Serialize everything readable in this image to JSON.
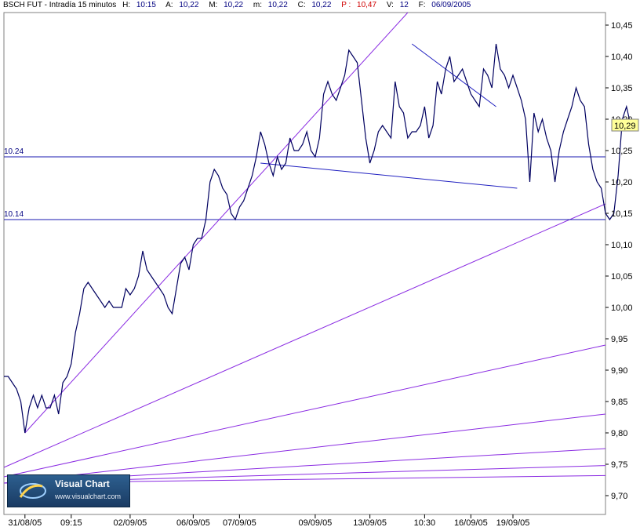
{
  "header": {
    "symbol": "BSCH FUT - Intradía 15 minutos",
    "h_label": "H:",
    "h_value": "10:15",
    "a_label": "A:",
    "a_value": "10,22",
    "m_label": "M:",
    "m_value": "10,22",
    "mm_label": "m:",
    "mm_value": "10,22",
    "c_label": "C:",
    "c_value": "10,22",
    "p_label": "P :",
    "p_value": "10,47",
    "v_label": "V:",
    "v_value": "12",
    "f_label": "F:",
    "f_value": "06/09/2005"
  },
  "logo": {
    "title": "Visual Chart",
    "url": "www.visualchart.com",
    "icon": "visual-chart-logo-icon"
  },
  "current_price_label": "10,29",
  "colors": {
    "price": "#000060",
    "horizontal": "#1a1ab0",
    "fan": "#8a2be2",
    "trend": "#2020c0",
    "label_bg": "#ffff99"
  },
  "chart_data": {
    "type": "line",
    "title": "BSCH FUT - Intradía 15 minutos",
    "xlabel": "",
    "ylabel": "",
    "ylim": [
      9.67,
      10.47
    ],
    "y_ticks": [
      "10,45",
      "10,40",
      "10,35",
      "10,30",
      "10,25",
      "10,20",
      "10,15",
      "10,10",
      "10,05",
      "10,00",
      "9,95",
      "9,90",
      "9,85",
      "9,80",
      "9,75",
      "9,70"
    ],
    "y_tick_values": [
      10.45,
      10.4,
      10.35,
      10.3,
      10.25,
      10.2,
      10.15,
      10.1,
      10.05,
      10.0,
      9.95,
      9.9,
      9.85,
      9.8,
      9.75,
      9.7
    ],
    "x_ticks": [
      "31/08/05",
      "09:15",
      "02/09/05",
      "06/09/05",
      "07/09/05",
      "09/09/05",
      "13/09/05",
      "10:30",
      "16/09/05",
      "19/09/05"
    ],
    "x_tick_index": [
      5,
      16,
      30,
      45,
      56,
      74,
      87,
      100,
      111,
      121
    ],
    "n_bars": 144,
    "x_range": [
      0,
      143
    ],
    "series": [
      {
        "values": [
          9.89,
          9.89,
          9.88,
          9.87,
          9.85,
          9.8,
          9.84,
          9.86,
          9.84,
          9.86,
          9.84,
          9.84,
          9.86,
          9.83,
          9.88,
          9.89,
          9.91,
          9.96,
          9.99,
          10.03,
          10.04,
          10.03,
          10.02,
          10.01,
          10.0,
          10.01,
          10.0,
          10.0,
          10.0,
          10.03,
          10.02,
          10.03,
          10.05,
          10.09,
          10.06,
          10.05,
          10.04,
          10.03,
          10.02,
          10.0,
          9.99,
          10.03,
          10.07,
          10.08,
          10.06,
          10.1,
          10.11,
          10.11,
          10.14,
          10.2,
          10.22,
          10.21,
          10.19,
          10.18,
          10.15,
          10.14,
          10.16,
          10.17,
          10.19,
          10.21,
          10.24,
          10.28,
          10.26,
          10.23,
          10.21,
          10.24,
          10.22,
          10.23,
          10.27,
          10.25,
          10.25,
          10.26,
          10.28,
          10.25,
          10.24,
          10.27,
          10.34,
          10.36,
          10.34,
          10.33,
          10.35,
          10.37,
          10.41,
          10.4,
          10.39,
          10.33,
          10.27,
          10.23,
          10.25,
          10.28,
          10.29,
          10.28,
          10.27,
          10.36,
          10.32,
          10.31,
          10.27,
          10.28,
          10.28,
          10.29,
          10.32,
          10.27,
          10.29,
          10.36,
          10.34,
          10.38,
          10.4,
          10.36,
          10.37,
          10.38,
          10.36,
          10.34,
          10.33,
          10.32,
          10.38,
          10.37,
          10.35,
          10.42,
          10.38,
          10.37,
          10.35,
          10.37,
          10.35,
          10.33,
          10.3,
          10.2,
          10.31,
          10.28,
          10.3,
          10.27,
          10.25,
          10.2,
          10.25,
          10.28,
          10.3,
          10.32,
          10.35,
          10.33,
          10.32,
          10.26,
          10.22,
          10.2,
          10.19,
          10.15,
          10.14,
          10.15,
          10.21,
          10.3,
          10.32,
          10.29
        ]
      }
    ],
    "horizontal_lines": [
      {
        "label": "10.24",
        "value": 10.24
      },
      {
        "label": "10.14",
        "value": 10.14
      }
    ],
    "trend_lines": [
      {
        "from": [
          5,
          9.8
        ],
        "to": [
          96,
          10.47
        ],
        "color": "fan"
      },
      {
        "from": [
          61,
          10.23
        ],
        "to": [
          122,
          10.19
        ],
        "color": "trend"
      },
      {
        "from": [
          97,
          10.42
        ],
        "to": [
          117,
          10.32
        ],
        "color": "trend"
      }
    ],
    "fan_lines": [
      {
        "from": [
          0,
          9.745
        ],
        "to": [
          143,
          10.165
        ]
      },
      {
        "from": [
          0,
          9.73
        ],
        "to": [
          143,
          9.94
        ]
      },
      {
        "from": [
          0,
          9.72
        ],
        "to": [
          143,
          9.83
        ]
      },
      {
        "from": [
          0,
          9.72
        ],
        "to": [
          143,
          9.775
        ]
      },
      {
        "from": [
          0,
          9.72
        ],
        "to": [
          143,
          9.748
        ]
      },
      {
        "from": [
          0,
          9.72
        ],
        "to": [
          143,
          9.732
        ]
      }
    ],
    "grid": false,
    "legend": "none"
  }
}
